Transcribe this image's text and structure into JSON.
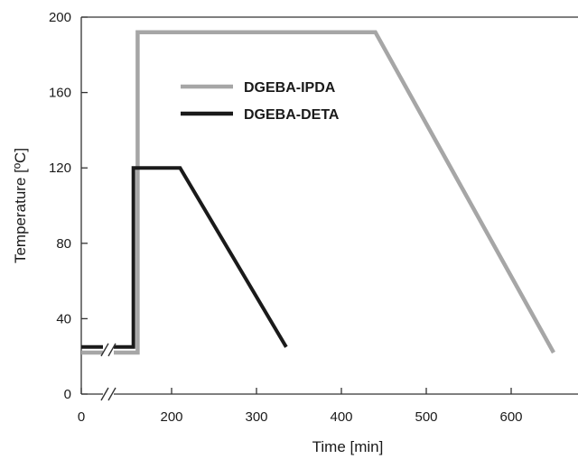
{
  "chart_data": {
    "type": "line",
    "title": "",
    "xlabel": "Time [min]",
    "ylabel": "Temperature [ºC]",
    "xlim": [
      0,
      650
    ],
    "ylim": [
      0,
      200
    ],
    "x_ticks": [
      0,
      200,
      300,
      400,
      500,
      600
    ],
    "y_ticks": [
      0,
      40,
      80,
      120,
      160,
      200
    ],
    "axis_break": "between 0 and 200 on the time axis",
    "grid": false,
    "legend": {
      "placement": "top-center"
    },
    "series": [
      {
        "name": "DGEBA-IPDA",
        "color": "#a6a6a6",
        "x": [
          0,
          160,
          160,
          440,
          650
        ],
        "y": [
          22,
          22,
          192,
          192,
          22
        ]
      },
      {
        "name": "DGEBA-DETA",
        "color": "#1a1a1a",
        "x": [
          0,
          155,
          155,
          210,
          335
        ],
        "y": [
          25,
          25,
          120,
          120,
          25
        ]
      }
    ]
  }
}
